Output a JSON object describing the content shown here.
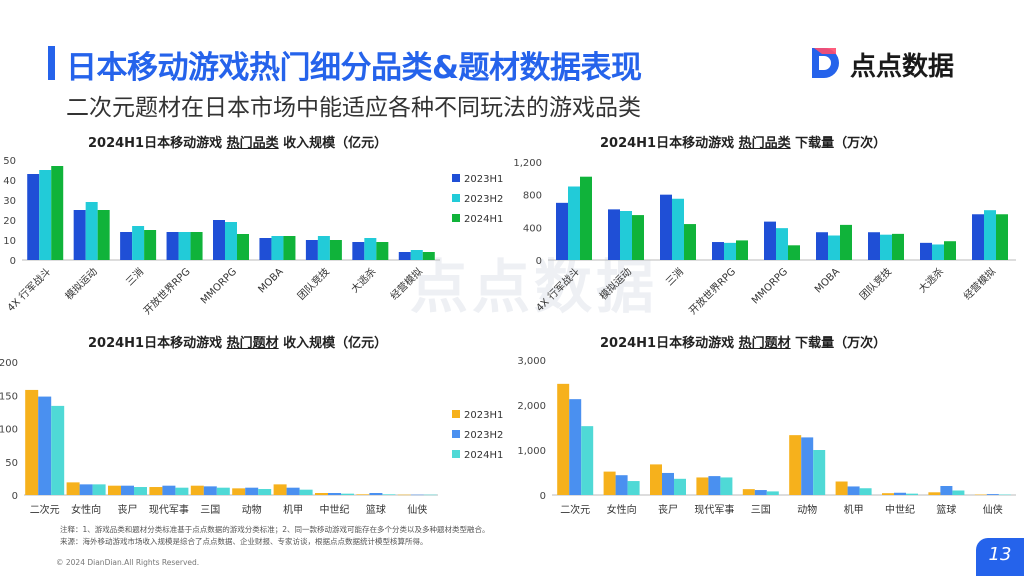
{
  "header": {
    "title": "日本移动游戏热门细分品类&题材数据表现",
    "subtitle": "二次元题材在日本市场中能适应各种不同玩法的游戏品类",
    "logo_text": "点点数据",
    "logo_icon": "dd-logo-icon"
  },
  "watermark": "点点数据",
  "colors": {
    "accent": "#2563eb",
    "dark_blue": "#1f4fd6",
    "cyan": "#22cbd8",
    "green": "#10b33a",
    "orange": "#f6b11c",
    "light_blue": "#4a90f0",
    "turquoise": "#4fd9d6"
  },
  "chart_data": [
    {
      "id": "chart1",
      "type": "bar",
      "title_prefix": "2024H1日本移动游戏 ",
      "title_underlined": "热门品类",
      "title_suffix": " 收入规模（亿元）",
      "categories": [
        "4X 行军战斗",
        "模拟运动",
        "三消",
        "开放世界RPG",
        "MMORPG",
        "MOBA",
        "团队竞技",
        "大逃杀",
        "经营模拟"
      ],
      "series": [
        {
          "name": "2023H1",
          "color": "#1f4fd6",
          "values": [
            43,
            25,
            14,
            14,
            20,
            11,
            10,
            9,
            4
          ]
        },
        {
          "name": "2023H2",
          "color": "#22cbd8",
          "values": [
            45,
            29,
            17,
            14,
            19,
            12,
            12,
            11,
            5
          ]
        },
        {
          "name": "2024H1",
          "color": "#10b33a",
          "values": [
            47,
            25,
            15,
            14,
            13,
            12,
            10,
            9,
            4
          ]
        }
      ],
      "ylim": [
        0,
        50
      ],
      "yticks": [
        "0",
        "10",
        "20",
        "30",
        "40",
        "50"
      ],
      "legend": "right"
    },
    {
      "id": "chart2",
      "type": "bar",
      "title_prefix": "2024H1日本移动游戏 ",
      "title_underlined": "热门品类",
      "title_suffix": " 下载量（万次）",
      "categories": [
        "4X 行军战斗",
        "模拟运动",
        "三消",
        "开放世界RPG",
        "MMORPG",
        "MOBA",
        "团队竞技",
        "大逃杀",
        "经营模拟"
      ],
      "series": [
        {
          "name": "2023H1",
          "color": "#1f4fd6",
          "values": [
            700,
            620,
            800,
            220,
            470,
            340,
            340,
            210,
            560
          ]
        },
        {
          "name": "2023H2",
          "color": "#22cbd8",
          "values": [
            900,
            600,
            750,
            210,
            390,
            300,
            310,
            190,
            610
          ]
        },
        {
          "name": "2024H1",
          "color": "#10b33a",
          "values": [
            1020,
            550,
            440,
            240,
            180,
            430,
            320,
            230,
            560
          ]
        }
      ],
      "ylim": [
        0,
        1200
      ],
      "yticks": [
        "0",
        "400",
        "800",
        "1,200"
      ],
      "legend": "none"
    },
    {
      "id": "chart3",
      "type": "bar",
      "title_prefix": "2024H1日本移动游戏 ",
      "title_underlined": "热门题材",
      "title_suffix": " 收入规模（亿元）",
      "categories": [
        "二次元",
        "女性向",
        "丧尸",
        "现代军事",
        "三国",
        "动物",
        "机甲",
        "中世纪",
        "篮球",
        "仙侠"
      ],
      "series": [
        {
          "name": "2023H1",
          "color": "#f6b11c",
          "values": [
            158,
            19,
            14,
            12,
            14,
            10,
            16,
            3,
            1,
            0.5
          ]
        },
        {
          "name": "2023H2",
          "color": "#4a90f0",
          "values": [
            148,
            16,
            14,
            14,
            13,
            11,
            11,
            3,
            3,
            0.5
          ]
        },
        {
          "name": "2024H1",
          "color": "#4fd9d6",
          "values": [
            134,
            16,
            12,
            11,
            11,
            9,
            8,
            2,
            1,
            0.5
          ]
        }
      ],
      "ylim": [
        0,
        200
      ],
      "yticks": [
        "0",
        "50",
        "100",
        "150",
        "200"
      ],
      "legend": "right"
    },
    {
      "id": "chart4",
      "type": "bar",
      "title_prefix": "2024H1日本移动游戏 ",
      "title_underlined": "热门题材",
      "title_suffix": " 下载量（万次）",
      "categories": [
        "二次元",
        "女性向",
        "丧尸",
        "现代军事",
        "三国",
        "动物",
        "机甲",
        "中世纪",
        "篮球",
        "仙侠"
      ],
      "series": [
        {
          "name": "2023H1",
          "color": "#f6b11c",
          "values": [
            2470,
            520,
            680,
            390,
            130,
            1330,
            300,
            40,
            60,
            10
          ]
        },
        {
          "name": "2023H2",
          "color": "#4a90f0",
          "values": [
            2130,
            440,
            490,
            420,
            110,
            1280,
            190,
            50,
            200,
            20
          ]
        },
        {
          "name": "2024H1",
          "color": "#4fd9d6",
          "values": [
            1530,
            310,
            360,
            390,
            80,
            1000,
            150,
            30,
            100,
            10
          ]
        }
      ],
      "ylim": [
        0,
        3000
      ],
      "yticks": [
        "0",
        "1,000",
        "2,000",
        "3,000"
      ],
      "legend": "none"
    }
  ],
  "footer": {
    "note1": "注释：1、游戏品类和题材分类标准基于点点数据的游戏分类标准；2、同一款移动游戏可能存在多个分类以及多种题材类型融合。",
    "note2": "来源：海外移动游戏市场收入规模是综合了点点数据、企业财报、专家访谈，根据点点数据统计模型核算所得。",
    "copyright": "© 2024 DianDian.All Rights Reserved.",
    "page_number": "13"
  }
}
